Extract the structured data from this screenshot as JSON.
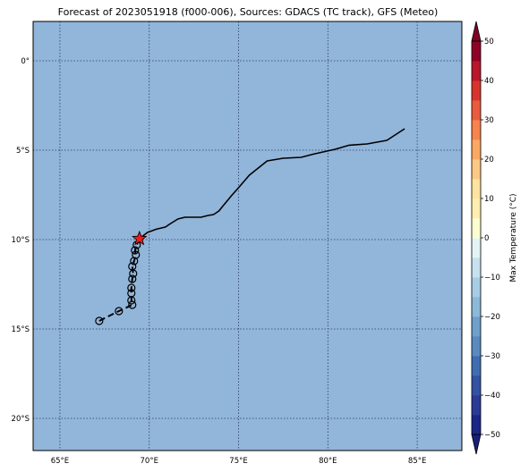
{
  "title": "Forecast of 2023051918 (f000-006), Sources: GDACS (TC track), GFS (Meteo)",
  "map": {
    "lon_range": [
      63.5,
      87.5
    ],
    "lat_range": [
      -21.8,
      2.2
    ],
    "ocean_color": "#92b5da",
    "frame_color": "#000000",
    "grid": true,
    "lon_ticks": [
      {
        "value": 65,
        "label": "65°E"
      },
      {
        "value": 70,
        "label": "70°E"
      },
      {
        "value": 75,
        "label": "75°E"
      },
      {
        "value": 80,
        "label": "80°E"
      },
      {
        "value": 85,
        "label": "85°E"
      }
    ],
    "lat_ticks": [
      {
        "value": 0,
        "label": "0°"
      },
      {
        "value": -5,
        "label": "5°S"
      },
      {
        "value": -10,
        "label": "10°S"
      },
      {
        "value": -15,
        "label": "15°S"
      },
      {
        "value": -20,
        "label": "20°S"
      }
    ]
  },
  "chart_data": {
    "type": "map",
    "observed_track": {
      "color": "#000000",
      "points": [
        [
          84.3,
          -3.8
        ],
        [
          83.3,
          -4.45
        ],
        [
          82.2,
          -4.65
        ],
        [
          81.2,
          -4.72
        ],
        [
          80.4,
          -4.95
        ],
        [
          79.2,
          -5.22
        ],
        [
          78.5,
          -5.4
        ],
        [
          77.5,
          -5.45
        ],
        [
          76.6,
          -5.6
        ],
        [
          75.6,
          -6.4
        ],
        [
          75.0,
          -7.1
        ],
        [
          74.6,
          -7.55
        ],
        [
          74.1,
          -8.15
        ],
        [
          73.9,
          -8.4
        ],
        [
          73.6,
          -8.6
        ],
        [
          73.3,
          -8.65
        ],
        [
          72.9,
          -8.75
        ],
        [
          72.4,
          -8.75
        ],
        [
          72.0,
          -8.75
        ],
        [
          71.6,
          -8.85
        ],
        [
          71.2,
          -9.1
        ],
        [
          70.9,
          -9.3
        ],
        [
          70.4,
          -9.42
        ],
        [
          69.9,
          -9.6
        ],
        [
          69.45,
          -9.95
        ]
      ]
    },
    "forecast_track": {
      "color": "#000000",
      "points": [
        [
          69.45,
          -9.95
        ],
        [
          69.3,
          -10.3
        ],
        [
          69.2,
          -10.6
        ],
        [
          69.25,
          -10.85
        ],
        [
          69.15,
          -11.2
        ],
        [
          69.05,
          -11.5
        ],
        [
          69.1,
          -11.9
        ],
        [
          69.05,
          -12.2
        ],
        [
          69.0,
          -12.7
        ],
        [
          69.0,
          -13.0
        ],
        [
          69.0,
          -13.4
        ],
        [
          69.05,
          -13.65
        ],
        [
          68.3,
          -14.0
        ],
        [
          67.2,
          -14.55
        ]
      ]
    },
    "current_position": {
      "lon": 69.45,
      "lat": -9.95,
      "marker": "star",
      "color": "#e8201e"
    },
    "colorbar": {
      "label": "Max Temperature (°C)",
      "levels": [
        -50,
        -40,
        -30,
        -20,
        -10,
        0,
        10,
        20,
        30,
        40,
        50
      ],
      "bands": [
        {
          "from": -50,
          "to": -45,
          "color": "#1b2787"
        },
        {
          "from": -45,
          "to": -40,
          "color": "#2a3a96"
        },
        {
          "from": -40,
          "to": -35,
          "color": "#3452a4"
        },
        {
          "from": -35,
          "to": -30,
          "color": "#3e6db2"
        },
        {
          "from": -30,
          "to": -25,
          "color": "#5a8ac0"
        },
        {
          "from": -25,
          "to": -20,
          "color": "#6f9fcb"
        },
        {
          "from": -20,
          "to": -15,
          "color": "#8db9d9"
        },
        {
          "from": -15,
          "to": -10,
          "color": "#a7cde4"
        },
        {
          "from": -10,
          "to": -5,
          "color": "#c7e2ee"
        },
        {
          "from": -5,
          "to": 0,
          "color": "#e4f4f6"
        },
        {
          "from": 0,
          "to": 5,
          "color": "#fdfed0"
        },
        {
          "from": 5,
          "to": 10,
          "color": "#feefb0"
        },
        {
          "from": 10,
          "to": 15,
          "color": "#fde39f"
        },
        {
          "from": 15,
          "to": 20,
          "color": "#fdc785"
        },
        {
          "from": 20,
          "to": 25,
          "color": "#fba863"
        },
        {
          "from": 25,
          "to": 30,
          "color": "#f7834d"
        },
        {
          "from": 30,
          "to": 35,
          "color": "#ea5b3e"
        },
        {
          "from": 35,
          "to": 40,
          "color": "#d8342e"
        },
        {
          "from": 40,
          "to": 45,
          "color": "#b9152b"
        },
        {
          "from": 45,
          "to": 50,
          "color": "#8e0327"
        }
      ],
      "under_color": "#171f7a",
      "over_color": "#800026"
    }
  }
}
